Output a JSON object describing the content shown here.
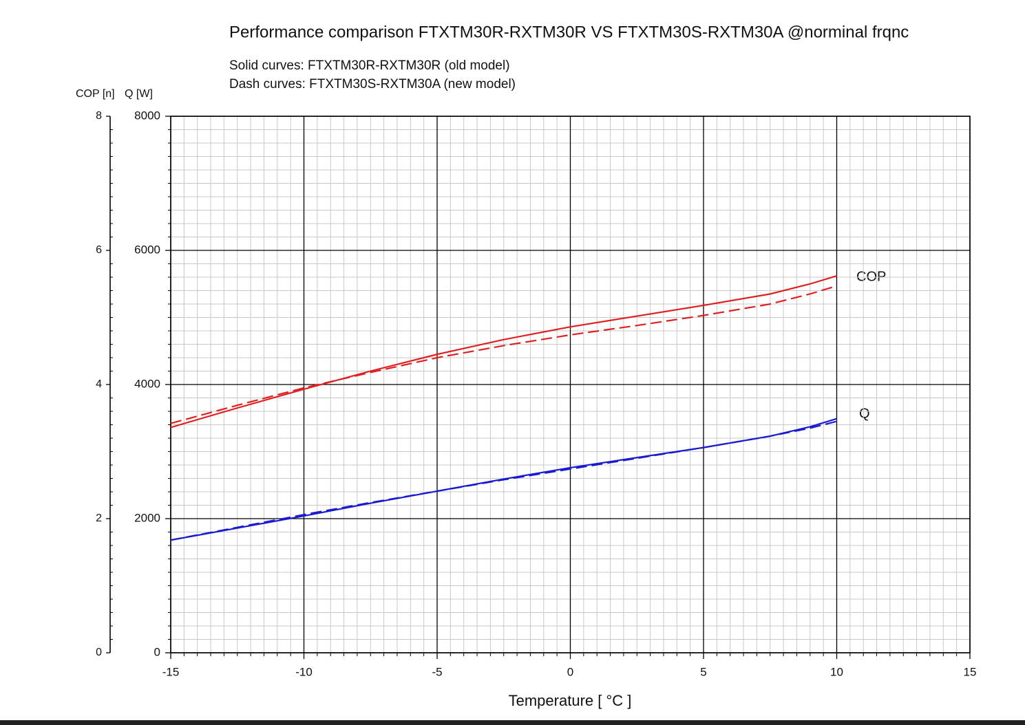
{
  "chart_data": {
    "type": "line",
    "title": "Performance comparison FTXTM30R-RXTM30R VS FTXTM30S-RXTM30A @norminal frqnc",
    "subtitles": [
      "Solid curves: FTXTM30R-RXTM30R  (old model)",
      "Dash curves: FTXTM30S-RXTM30A  (new model)"
    ],
    "xlabel": "Temperature [ °C ]",
    "ylabel": "Q [W]",
    "y2label": "COP [n]",
    "curve_labels": [
      "COP",
      "Q"
    ],
    "x": [
      -15,
      -12.5,
      -10,
      -7.5,
      -5,
      -2.5,
      0,
      2.5,
      5,
      7.5,
      9,
      10
    ],
    "series": [
      {
        "color": "#e02020",
        "dash": false,
        "axis": "y2",
        "values": [
          3.36,
          3.65,
          3.93,
          4.2,
          4.45,
          4.67,
          4.86,
          5.02,
          5.18,
          5.35,
          5.5,
          5.62
        ]
      },
      {
        "color": "#e02020",
        "dash": true,
        "axis": "y2",
        "values": [
          3.42,
          3.69,
          3.95,
          4.18,
          4.4,
          4.58,
          4.74,
          4.88,
          5.03,
          5.2,
          5.35,
          5.47
        ]
      },
      {
        "color": "#1a1ad0",
        "dash": false,
        "values": [
          1680,
          1860,
          2040,
          2230,
          2410,
          2590,
          2760,
          2910,
          3060,
          3230,
          3370,
          3490
        ]
      },
      {
        "color": "#1a1ad0",
        "dash": true,
        "values": [
          1680,
          1870,
          2060,
          2240,
          2410,
          2580,
          2740,
          2900,
          3060,
          3230,
          3350,
          3450
        ]
      }
    ],
    "xlim": [
      -15,
      15
    ],
    "xticks": [
      -15,
      -10,
      -5,
      0,
      5,
      10,
      15
    ],
    "ylim": [
      0,
      8000
    ],
    "yticks": [
      0,
      2000,
      4000,
      6000,
      8000
    ],
    "y2lim": [
      0,
      8
    ],
    "y2ticks": [
      0,
      2,
      4,
      6,
      8
    ],
    "grid": true,
    "minor_divisions": 10
  }
}
